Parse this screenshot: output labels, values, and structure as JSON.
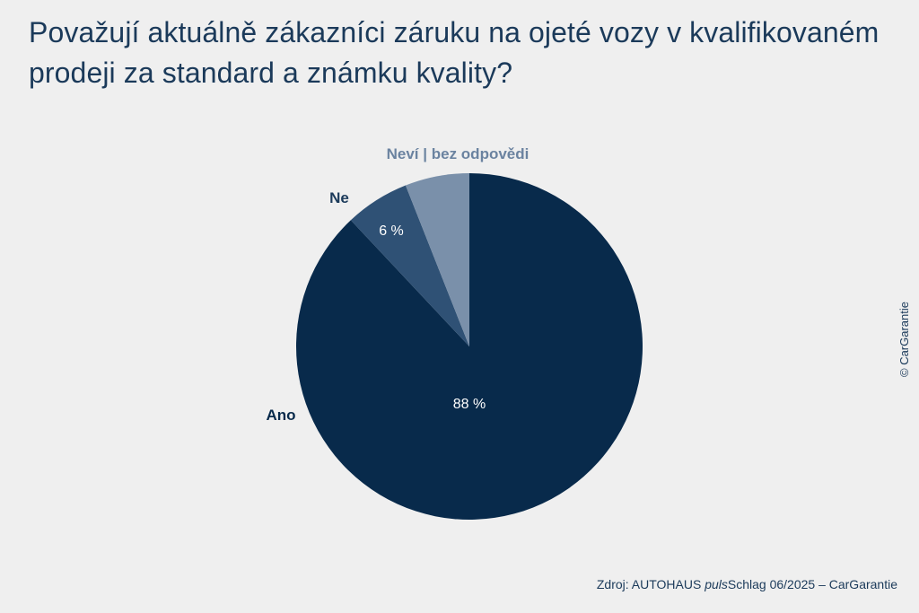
{
  "chart_data": {
    "type": "pie",
    "title": "Považují aktuálně zákazníci záruku na ojeté vozy v kvalifikovaném prodeji za standard a známku kvality?",
    "slices": [
      {
        "label": "Ano",
        "value": 88,
        "value_label": "88 %",
        "color": "#082a4b"
      },
      {
        "label": "Ne",
        "value": 6,
        "value_label": "6 %",
        "color": "#2f5175"
      },
      {
        "label": "Neví | bez odpovědi",
        "value": 6,
        "value_label": "",
        "color": "#7a90aa"
      }
    ],
    "start": "12 o'clock",
    "direction": "clockwise"
  },
  "footer": {
    "prefix": "Zdroj: AUTOHAUS ",
    "italic": "puls",
    "suffix": "Schlag 06/2025 – CarGarantie"
  },
  "copyright": "© CarGarantie"
}
